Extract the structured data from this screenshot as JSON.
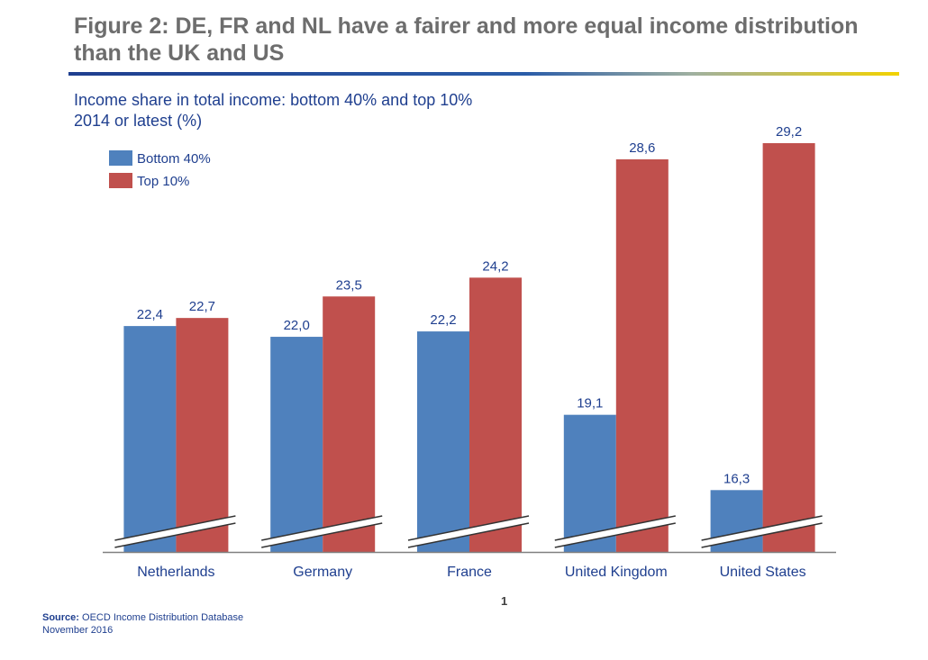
{
  "header": {
    "title": "Figure 2: DE, FR and NL have a fairer and more equal income distribution than the UK and US"
  },
  "subtitle": {
    "line1": "Income share in total income: bottom 40% and top 10%",
    "line2": "2014 or latest (%)"
  },
  "footer": {
    "source_label": "Source:",
    "source_text": "OECD Income Distribution Database",
    "date": "November 2016",
    "page_number": "1"
  },
  "colors": {
    "bottom40": "#4f81bd",
    "top10": "#c0504d",
    "label_text": "#1f3f8f",
    "axis": "#808080"
  },
  "chart_data": {
    "type": "bar",
    "categories": [
      "Netherlands",
      "Germany",
      "France",
      "United Kingdom",
      "United States"
    ],
    "series": [
      {
        "name": "Bottom 40%",
        "values": [
          22.4,
          22.0,
          22.2,
          19.1,
          16.3
        ],
        "labels": [
          "22,4",
          "22,0",
          "22,2",
          "19,1",
          "16,3"
        ]
      },
      {
        "name": "Top 10%",
        "values": [
          22.7,
          23.5,
          24.2,
          28.6,
          29.2
        ],
        "labels": [
          "22,7",
          "23,5",
          "24,2",
          "28,6",
          "29,2"
        ]
      }
    ],
    "legend": "top-left",
    "grid": false,
    "axis_break": true,
    "ylim": [
      14,
      30
    ]
  }
}
